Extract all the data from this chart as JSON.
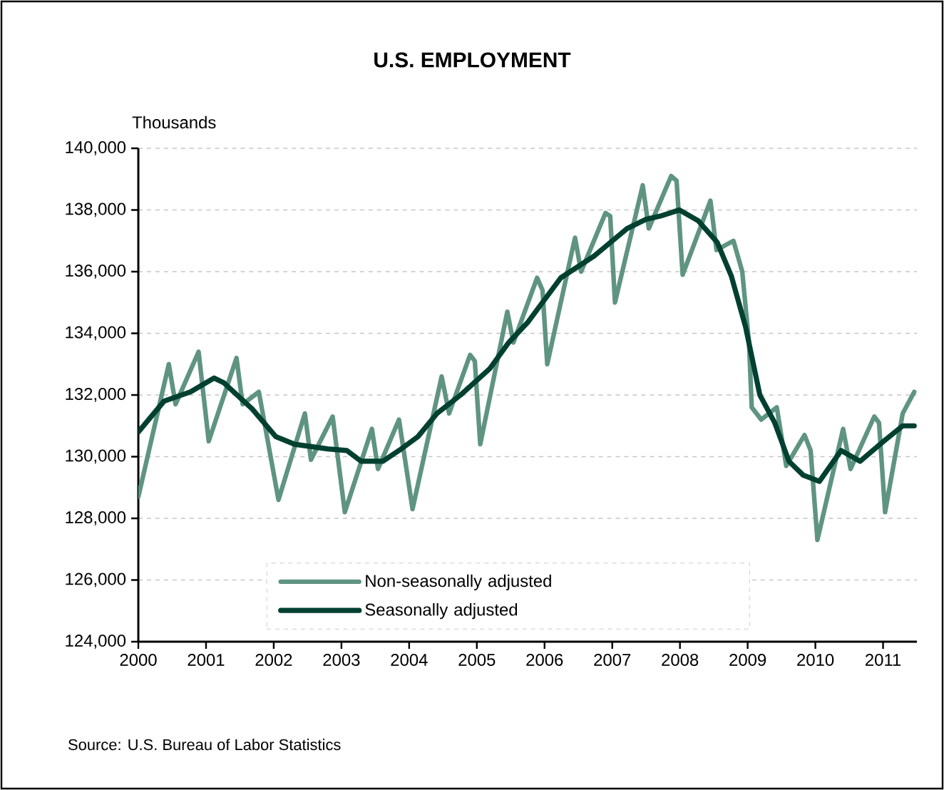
{
  "chart_data": {
    "type": "line",
    "title": "U.S. EMPLOYMENT",
    "ylabel": "Thousands",
    "xlim": [
      2000,
      2011.5
    ],
    "xticks": [
      2000,
      2001,
      2002,
      2003,
      2004,
      2005,
      2006,
      2007,
      2008,
      2009,
      2010,
      2011
    ],
    "ylim": [
      124000,
      140000
    ],
    "yticks": [
      {
        "value": 124000,
        "label": "124,000"
      },
      {
        "value": 126000,
        "label": "126,000"
      },
      {
        "value": 128000,
        "label": "128,000"
      },
      {
        "value": 130000,
        "label": "130,000"
      },
      {
        "value": 132000,
        "label": "132,000"
      },
      {
        "value": 134000,
        "label": "134,000"
      },
      {
        "value": 136000,
        "label": "136,000"
      },
      {
        "value": 138000,
        "label": "138,000"
      },
      {
        "value": 140000,
        "label": "140,000"
      }
    ],
    "grid": "y",
    "legend": "bottom",
    "marker": "none",
    "line_style": "solid",
    "annotations": [
      "Source: U.S. Bureau of Labor Statistics"
    ],
    "series": [
      {
        "name": "Non-seasonally adjusted",
        "color": "#5f9481",
        "x": [
          2000.0,
          2000.45,
          2000.55,
          2000.89,
          2001.04,
          2001.45,
          2001.54,
          2001.78,
          2002.07,
          2002.46,
          2002.55,
          2002.87,
          2003.05,
          2003.45,
          2003.54,
          2003.85,
          2004.05,
          2004.48,
          2004.59,
          2004.9,
          2004.97,
          2005.05,
          2005.45,
          2005.54,
          2005.89,
          2005.97,
          2006.04,
          2006.45,
          2006.54,
          2006.9,
          2006.97,
          2007.04,
          2007.45,
          2007.54,
          2007.87,
          2007.95,
          2008.04,
          2008.45,
          2008.54,
          2008.79,
          2008.92,
          2009.02,
          2009.06,
          2009.2,
          2009.43,
          2009.57,
          2009.84,
          2009.93,
          2010.03,
          2010.41,
          2010.52,
          2010.87,
          2010.94,
          2011.03,
          2011.29,
          2011.46
        ],
        "values": [
          128700,
          133000,
          131700,
          133400,
          130500,
          133200,
          131700,
          132100,
          128600,
          131400,
          129900,
          131300,
          128200,
          130900,
          129600,
          131200,
          128300,
          132600,
          131400,
          133300,
          133100,
          130400,
          134700,
          133700,
          135800,
          135400,
          133000,
          137100,
          136000,
          137900,
          137800,
          135000,
          138800,
          137400,
          139100,
          138950,
          135900,
          138300,
          136700,
          137000,
          136000,
          133700,
          131600,
          131200,
          131600,
          129700,
          130700,
          130200,
          127300,
          130900,
          129600,
          131300,
          131100,
          128200,
          131400,
          132100
        ]
      },
      {
        "name": "Seasonally adjusted",
        "color": "#004030",
        "x": [
          2000.0,
          2000.38,
          2000.77,
          2001.12,
          2001.26,
          2001.68,
          2002.03,
          2002.31,
          2002.8,
          2003.08,
          2003.29,
          2003.61,
          2003.85,
          2004.13,
          2004.41,
          2004.76,
          2005.19,
          2005.47,
          2005.75,
          2006.24,
          2006.73,
          2007.22,
          2007.5,
          2007.71,
          2007.99,
          2008.27,
          2008.55,
          2008.76,
          2008.97,
          2009.18,
          2009.4,
          2009.61,
          2009.82,
          2010.06,
          2010.38,
          2010.66,
          2011.01,
          2011.29,
          2011.46
        ],
        "values": [
          130800,
          131800,
          132100,
          132550,
          132400,
          131550,
          130650,
          130400,
          130250,
          130200,
          129850,
          129850,
          130200,
          130650,
          131400,
          132000,
          132850,
          133700,
          134350,
          135800,
          136500,
          137400,
          137700,
          137800,
          138000,
          137650,
          136950,
          135850,
          134200,
          132000,
          131100,
          129850,
          129400,
          129200,
          130200,
          129850,
          130500,
          131000,
          131000
        ]
      }
    ]
  }
}
